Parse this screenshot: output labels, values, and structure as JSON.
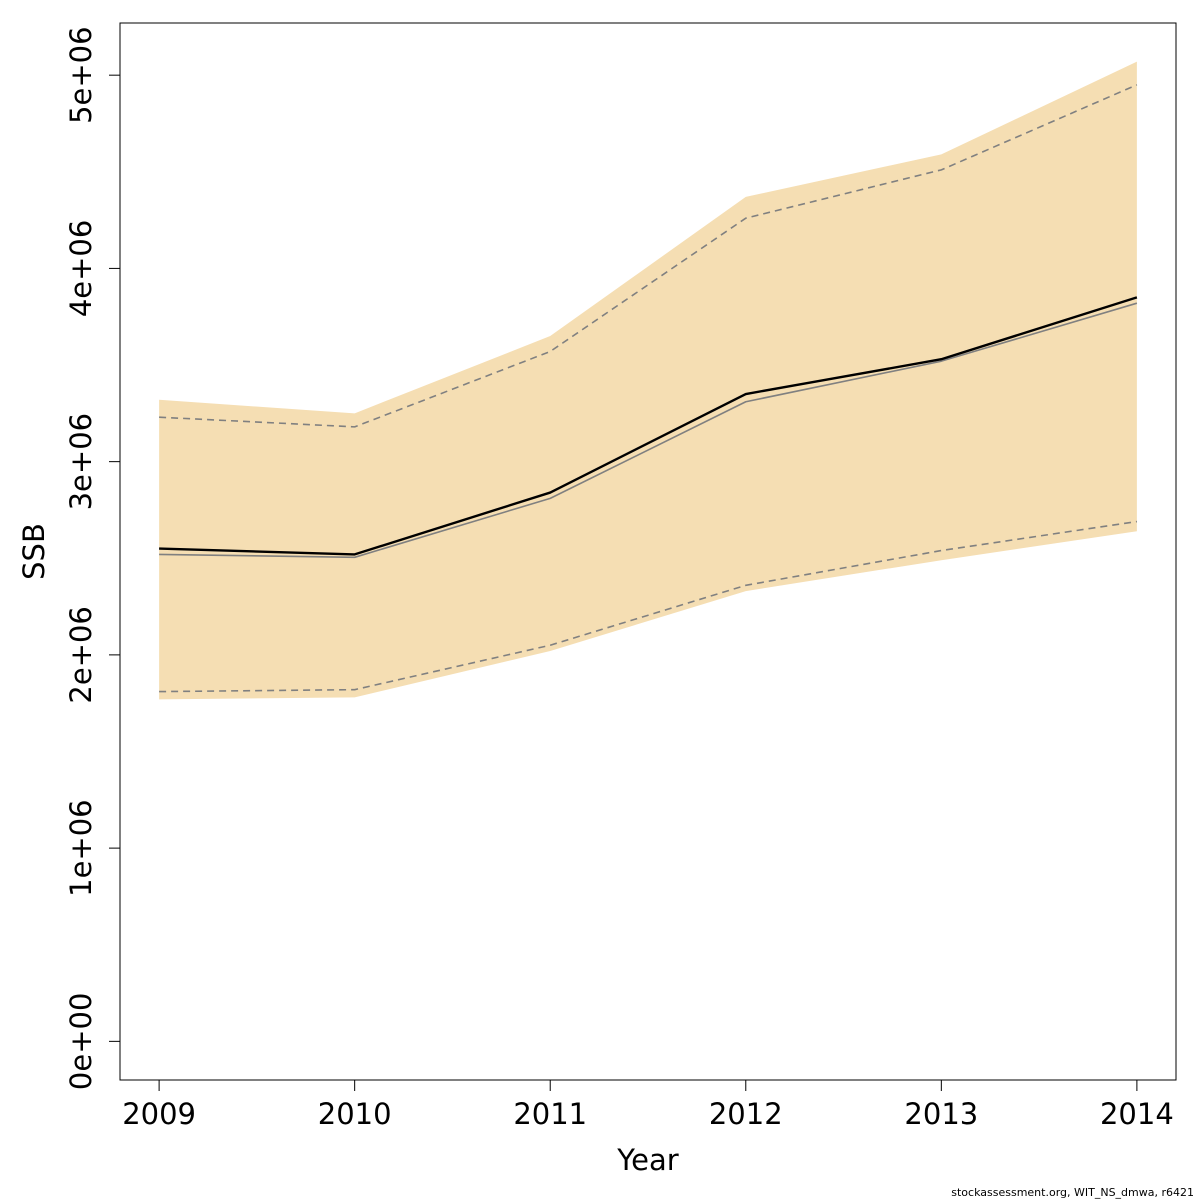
{
  "chart_data": {
    "type": "line",
    "title": "",
    "xlabel": "Year",
    "ylabel": "SSB",
    "x": [
      2009,
      2010,
      2011,
      2012,
      2013,
      2014
    ],
    "x_tick_labels": [
      "2009",
      "2010",
      "2011",
      "2012",
      "2013",
      "2014"
    ],
    "y_ticks": [
      0,
      1000000,
      2000000,
      3000000,
      4000000,
      5000000
    ],
    "y_tick_labels": [
      "0e+00",
      "1e+06",
      "2e+06",
      "3e+06",
      "4e+06",
      "5e+06"
    ],
    "xlim": [
      2008.8,
      2014.2
    ],
    "ylim": [
      -200000,
      5270000
    ],
    "grid": false,
    "band": {
      "color": "#f5deb3",
      "upper": [
        3320000,
        3250000,
        3650000,
        4370000,
        4590000,
        5070000
      ],
      "lower": [
        1770000,
        1780000,
        2020000,
        2330000,
        2490000,
        2640000
      ]
    },
    "series": [
      {
        "style": "solid",
        "color": "#000000",
        "width": 2.4,
        "values": [
          2550000,
          2520000,
          2840000,
          3350000,
          3530000,
          3850000
        ]
      },
      {
        "style": "solid",
        "color": "#808080",
        "width": 1.6,
        "values": [
          2520000,
          2505000,
          2810000,
          3310000,
          3520000,
          3820000
        ]
      },
      {
        "style": "dashed",
        "color": "#808080",
        "width": 1.6,
        "values": [
          3230000,
          3180000,
          3570000,
          4260000,
          4510000,
          4950000
        ]
      },
      {
        "style": "dashed",
        "color": "#808080",
        "width": 1.6,
        "values": [
          1810000,
          1820000,
          2050000,
          2360000,
          2540000,
          2690000
        ]
      }
    ]
  },
  "footer": "stockassessment.org, WIT_NS_dmwa, r6421"
}
